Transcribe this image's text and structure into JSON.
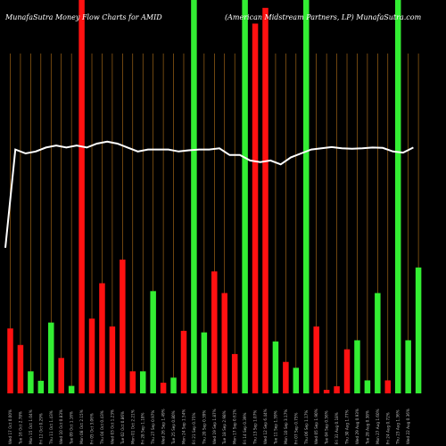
{
  "chart_data": {
    "type": "bar",
    "title_left": "MunafaSutra  Money  Flow  Charts for AMID",
    "title_right": "(American  Midstream  Partners,  LP) MunafaSutra.com",
    "colors": {
      "up": "#33ee33",
      "down": "#ff1111",
      "line": "#ffffff",
      "grid": "#b8741a",
      "background": "#000000"
    },
    "ylim": [
      0,
      100
    ],
    "categories": [
      "Wed 17 Oct 0.00%",
      "Tue 16 Oct 2.78%",
      "Mon 15 Oct 1.04%",
      "Fri 12 Oct 0.29%",
      "Thu 11 Oct 1.43%",
      "Wed 10 Oct 0.83%",
      "Tue 09 Oct 1.16%",
      "Mon 08 Oct 2.15%",
      "Fri 05 Oct 3.06%",
      "Thu 04 Oct 0.43%",
      "Wed 03 Oct 1.23%",
      "Tue 02 Oct 0.86%",
      "Mon 01 Oct 2.21%",
      "Fri 28 Sep 1.18%",
      "Thu 27 Sep 0.97%",
      "Wed 26 Sep 1.49%",
      "Tue 25 Sep 0.80%",
      "Mon 24 Sep 1.54%",
      "Fri 21 Sep 0.75%",
      "Thu 20 Sep 0.39%",
      "Wed 19 Sep 1.87%",
      "Tue 18 Sep 2.98%",
      "Mon 17 Sep 0.61%",
      "Fri 14 Sep 0.39%",
      "Thu 13 Sep 1.07%",
      "Wed 12 Sep 6.44%",
      "Tue 11 Sep 1.59%",
      "Mon 10 Sep 3.17%",
      "Fri 07 Sep 0.75%",
      "Thu 06 Sep 1.17%",
      "Wed 05 Sep 1.90%",
      "Tue 04 Sep 0.56%",
      "Fri 31 Aug 0.18%",
      "Thu 30 Aug 1.77%",
      "Wed 29 Aug 0.93%",
      "Tue 28 Aug 0.38%",
      "Mon 27 Aug 1.60%",
      "Fri 24 Aug 0.72%",
      "Thu 23 Aug 1.36%",
      "Wed 22 Aug 0.36%"
    ],
    "flow": [
      "down",
      "down",
      "up",
      "up",
      "up",
      "down",
      "up",
      "down",
      "down",
      "down",
      "down",
      "down",
      "down",
      "up",
      "up",
      "down",
      "up",
      "down",
      "up",
      "up",
      "down",
      "down",
      "down",
      "up",
      "down",
      "down",
      "up",
      "down",
      "up",
      "up",
      "down",
      "down",
      "down",
      "down",
      "up",
      "up",
      "up",
      "down",
      "up",
      "up"
    ],
    "values": [
      16.5,
      12.3,
      5.6,
      3.2,
      18.0,
      9.0,
      1.9,
      100,
      19.0,
      28.0,
      17.0,
      34.0,
      5.6,
      5.6,
      26.0,
      2.7,
      4.0,
      15.9,
      100,
      15.5,
      31.0,
      25.5,
      10.0,
      100,
      94.0,
      98.0,
      13.2,
      8.0,
      6.5,
      100,
      17.0,
      0.9,
      1.8,
      11.2,
      13.5,
      3.3,
      25.5,
      3.3,
      100,
      13.5
    ],
    "extra_value": 32.0,
    "extra_flow": "up",
    "price_line": [
      37.0,
      62.0,
      61.0,
      61.5,
      62.5,
      63.0,
      62.5,
      63.0,
      62.5,
      63.5,
      64.0,
      63.5,
      62.5,
      61.5,
      62.0,
      62.0,
      62.0,
      61.5,
      61.8,
      62.0,
      62.0,
      62.3,
      60.6,
      60.6,
      59.2,
      58.8,
      59.2,
      58.2,
      60.0,
      61.0,
      62.0,
      62.3,
      62.6,
      62.3,
      62.2,
      62.3,
      62.5,
      62.4,
      61.5,
      61.2,
      62.5
    ]
  }
}
